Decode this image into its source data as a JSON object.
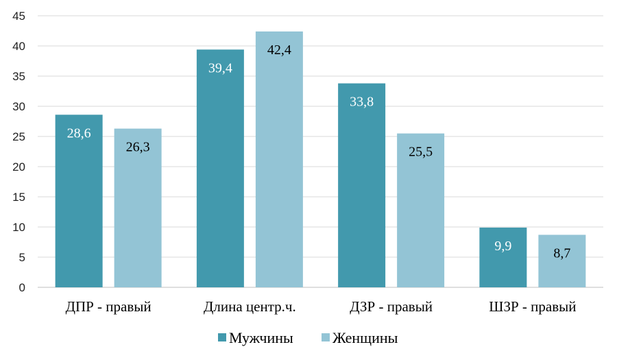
{
  "chart_data": {
    "type": "bar",
    "categories": [
      "ДПР - правый",
      "Длина центр.ч.",
      "ДЗР - правый",
      "ШЗР - правый"
    ],
    "series": [
      {
        "name": "Мужчины",
        "values": [
          28.6,
          39.4,
          33.8,
          9.9
        ],
        "labels": [
          "28,6",
          "39,4",
          "33,8",
          "9,9"
        ],
        "color": "#4299ad",
        "label_color": "#ffffff"
      },
      {
        "name": "Женщины",
        "values": [
          26.3,
          42.4,
          25.5,
          8.7
        ],
        "labels": [
          "26,3",
          "42,4",
          "25,5",
          "8,7"
        ],
        "color": "#93c4d5",
        "label_color": "#000000"
      }
    ],
    "yticks": [
      "0",
      "5",
      "10",
      "15",
      "20",
      "25",
      "30",
      "35",
      "40",
      "45"
    ],
    "ylim": [
      0,
      45
    ],
    "grid": true,
    "legend": "bottom",
    "title": "",
    "xlabel": "",
    "ylabel": ""
  }
}
